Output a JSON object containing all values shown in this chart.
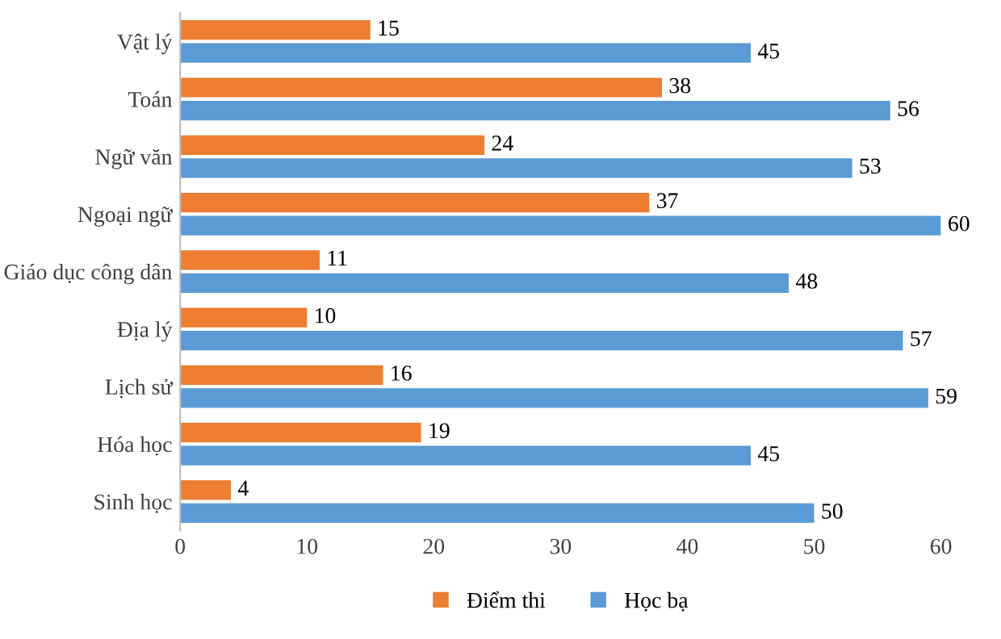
{
  "chart_data": {
    "type": "bar",
    "orientation": "horizontal",
    "categories": [
      "Vật lý",
      "Toán",
      "Ngữ văn",
      "Ngoại ngữ",
      "Giáo dục công dân",
      "Địa lý",
      "Lịch sử",
      "Hóa học",
      "Sinh học"
    ],
    "series": [
      {
        "name": "Điểm thi",
        "color": "#ed7d31",
        "values": [
          15,
          38,
          24,
          37,
          11,
          10,
          16,
          19,
          4
        ]
      },
      {
        "name": "Học bạ",
        "color": "#5b9bd5",
        "values": [
          45,
          56,
          53,
          60,
          48,
          57,
          59,
          45,
          50
        ]
      }
    ],
    "xlim": [
      0,
      60
    ],
    "xticks": [
      0,
      10,
      20,
      30,
      40,
      50,
      60
    ],
    "data_labels": true,
    "grid": false,
    "legend": "bottom"
  }
}
